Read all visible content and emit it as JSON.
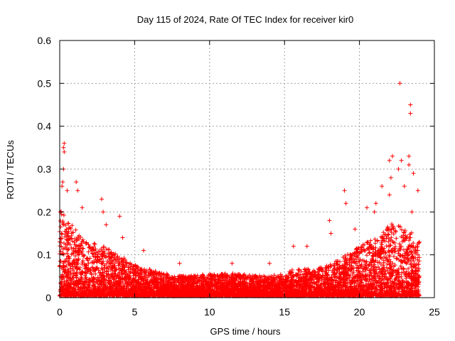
{
  "chart_data": {
    "type": "scatter",
    "title": "Day 115 of 2024, Rate Of TEC Index for receiver kir0",
    "xlabel": "GPS time / hours",
    "ylabel": "ROTI / TECUs",
    "xlim": [
      0,
      25
    ],
    "ylim": [
      0,
      0.6
    ],
    "x_ticks": [
      0,
      5,
      10,
      15,
      20,
      25
    ],
    "x_tick_labels": [
      "0",
      "5",
      "10",
      "15",
      "20",
      "25"
    ],
    "y_ticks": [
      0,
      0.1,
      0.2,
      0.3,
      0.4,
      0.5,
      0.6
    ],
    "y_tick_labels": [
      "0",
      "0.1",
      "0.2",
      "0.3",
      "0.4",
      "0.5",
      "0.6"
    ],
    "grid": true,
    "marker": "+",
    "point_color": "#ff0000",
    "series": [
      {
        "name": "ROTI",
        "envelope": {
          "x": [
            0,
            0.5,
            1,
            1.5,
            2,
            2.5,
            3,
            3.5,
            4,
            4.5,
            5,
            5.5,
            6,
            7,
            8,
            9,
            10,
            11,
            12,
            13,
            14,
            15,
            15.5,
            16,
            17,
            18,
            18.5,
            19,
            19.5,
            20,
            20.5,
            21,
            21.5,
            22,
            22.5,
            23,
            23.5,
            24
          ],
          "y": [
            0.2,
            0.17,
            0.15,
            0.13,
            0.12,
            0.12,
            0.11,
            0.1,
            0.09,
            0.08,
            0.07,
            0.06,
            0.06,
            0.05,
            0.045,
            0.045,
            0.05,
            0.05,
            0.05,
            0.045,
            0.045,
            0.05,
            0.06,
            0.06,
            0.06,
            0.07,
            0.08,
            0.09,
            0.1,
            0.11,
            0.12,
            0.13,
            0.14,
            0.16,
            0.16,
            0.15,
            0.14,
            0.12
          ]
        },
        "peaks": [
          {
            "x": 0.3,
            "y": 0.36
          },
          {
            "x": 0.25,
            "y": 0.35
          },
          {
            "x": 0.3,
            "y": 0.34
          },
          {
            "x": 0.25,
            "y": 0.3
          },
          {
            "x": 0.2,
            "y": 0.27
          },
          {
            "x": 0.15,
            "y": 0.26
          },
          {
            "x": 0.5,
            "y": 0.25
          },
          {
            "x": 1.1,
            "y": 0.27
          },
          {
            "x": 1.2,
            "y": 0.25
          },
          {
            "x": 1.5,
            "y": 0.21
          },
          {
            "x": 2.8,
            "y": 0.23
          },
          {
            "x": 2.9,
            "y": 0.2
          },
          {
            "x": 3.1,
            "y": 0.17
          },
          {
            "x": 4.0,
            "y": 0.19
          },
          {
            "x": 4.2,
            "y": 0.14
          },
          {
            "x": 5.6,
            "y": 0.11
          },
          {
            "x": 8.0,
            "y": 0.08
          },
          {
            "x": 11.5,
            "y": 0.08
          },
          {
            "x": 14.0,
            "y": 0.08
          },
          {
            "x": 15.6,
            "y": 0.12
          },
          {
            "x": 16.5,
            "y": 0.12
          },
          {
            "x": 18.0,
            "y": 0.18
          },
          {
            "x": 18.1,
            "y": 0.15
          },
          {
            "x": 19.0,
            "y": 0.25
          },
          {
            "x": 19.1,
            "y": 0.22
          },
          {
            "x": 19.7,
            "y": 0.16
          },
          {
            "x": 20.5,
            "y": 0.21
          },
          {
            "x": 21.0,
            "y": 0.2
          },
          {
            "x": 21.1,
            "y": 0.22
          },
          {
            "x": 21.5,
            "y": 0.26
          },
          {
            "x": 22.0,
            "y": 0.32
          },
          {
            "x": 22.1,
            "y": 0.28
          },
          {
            "x": 22.2,
            "y": 0.33
          },
          {
            "x": 22.0,
            "y": 0.24
          },
          {
            "x": 22.6,
            "y": 0.3
          },
          {
            "x": 22.8,
            "y": 0.32
          },
          {
            "x": 23.0,
            "y": 0.26
          },
          {
            "x": 22.7,
            "y": 0.5
          },
          {
            "x": 23.4,
            "y": 0.45
          },
          {
            "x": 23.4,
            "y": 0.43
          },
          {
            "x": 23.3,
            "y": 0.33
          },
          {
            "x": 23.3,
            "y": 0.31
          },
          {
            "x": 23.6,
            "y": 0.29
          },
          {
            "x": 23.9,
            "y": 0.25
          },
          {
            "x": 23.5,
            "y": 0.2
          },
          {
            "x": 24.0,
            "y": 0.13
          }
        ]
      }
    ]
  }
}
